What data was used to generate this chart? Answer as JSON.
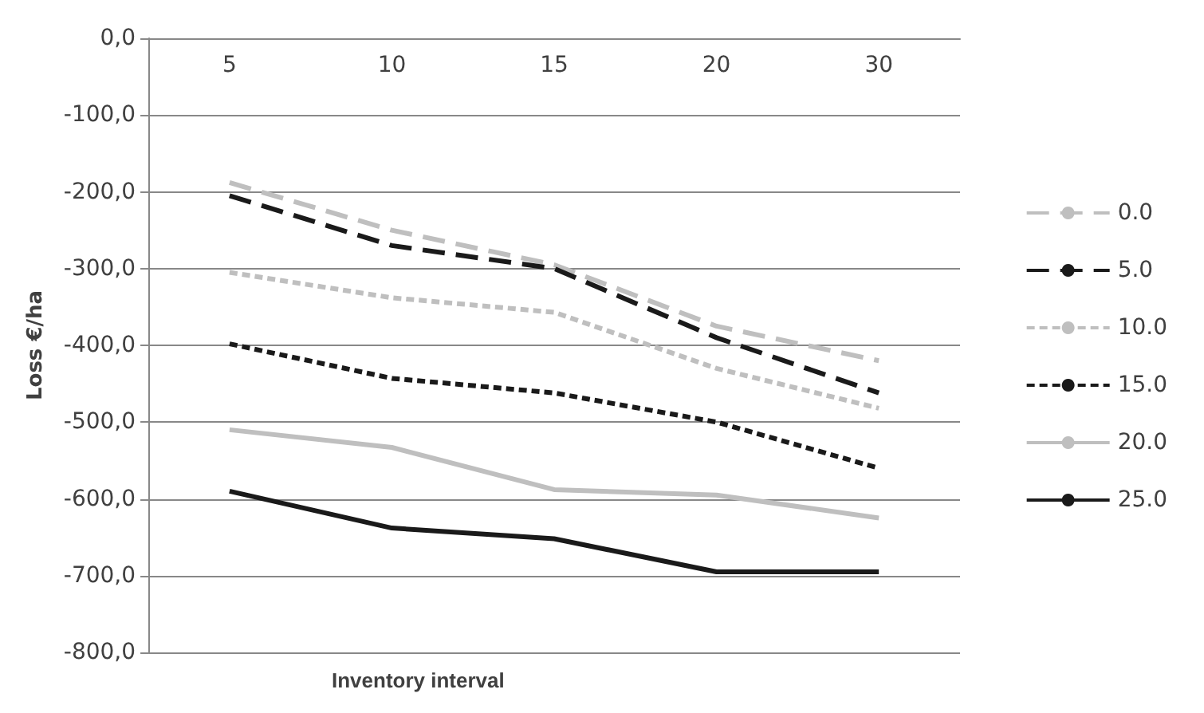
{
  "chart_data": {
    "type": "line",
    "xlabel": "Inventory interval",
    "ylabel": "Loss €/ha",
    "categories": [
      "5",
      "10",
      "15",
      "20",
      "30"
    ],
    "series": [
      {
        "name": "0.0",
        "color": "#bfbfbf",
        "line_style": "dashed",
        "values": [
          -188,
          -250,
          -295,
          -375,
          -420
        ]
      },
      {
        "name": "5.0",
        "color": "#1a1a1a",
        "line_style": "dashed",
        "values": [
          -205,
          -270,
          -300,
          -390,
          -462
        ]
      },
      {
        "name": "10.0",
        "color": "#bfbfbf",
        "line_style": "dotted",
        "values": [
          -305,
          -338,
          -357,
          -430,
          -482
        ]
      },
      {
        "name": "15.0",
        "color": "#1a1a1a",
        "line_style": "dotted",
        "values": [
          -398,
          -443,
          -462,
          -500,
          -560
        ]
      },
      {
        "name": "20.0",
        "color": "#bfbfbf",
        "line_style": "solid",
        "values": [
          -510,
          -533,
          -588,
          -595,
          -625
        ]
      },
      {
        "name": "25.0",
        "color": "#1a1a1a",
        "line_style": "solid",
        "values": [
          -590,
          -638,
          -652,
          -695,
          -695
        ]
      }
    ],
    "ylim": [
      -800,
      0
    ],
    "yticks": [
      {
        "value": -800,
        "label": "-800,0"
      },
      {
        "value": -700,
        "label": "-700,0"
      },
      {
        "value": -600,
        "label": "-600,0"
      },
      {
        "value": -500,
        "label": "-500,0"
      },
      {
        "value": -400,
        "label": "-400,0"
      },
      {
        "value": -300,
        "label": "-300,0"
      },
      {
        "value": -200,
        "label": "-200,0"
      },
      {
        "value": -100,
        "label": "-100,0"
      },
      {
        "value": 0,
        "label": "0,0"
      }
    ],
    "grid": "y",
    "legend": "right",
    "marker": "none"
  }
}
